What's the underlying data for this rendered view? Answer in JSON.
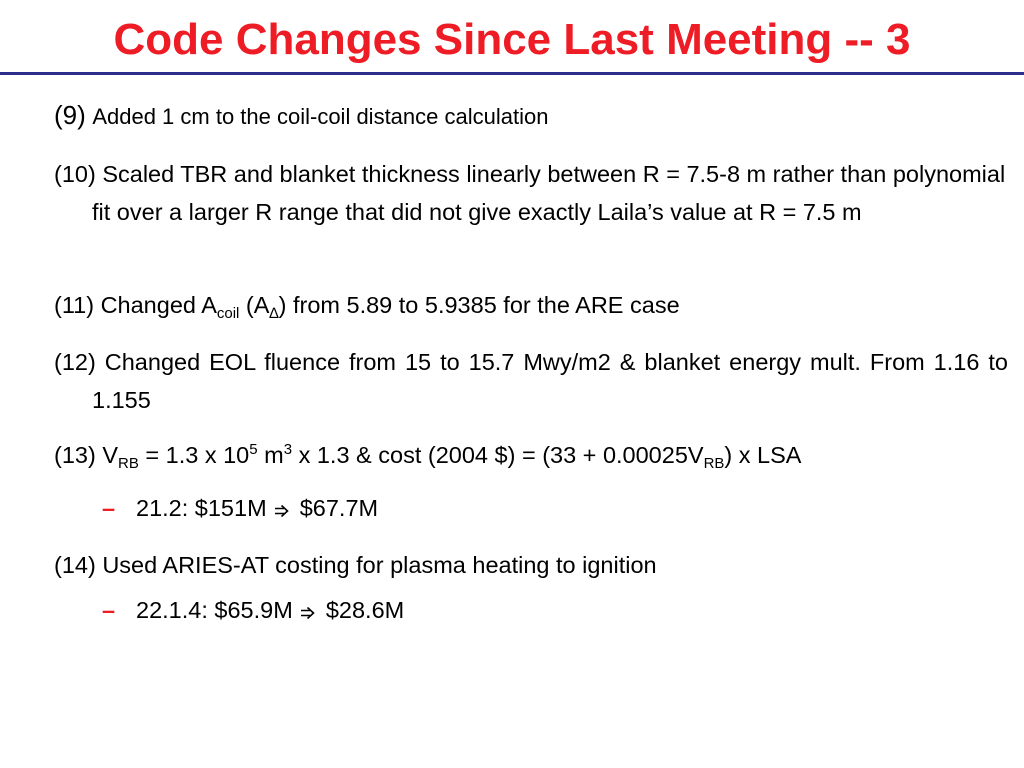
{
  "colors": {
    "title": "#ee1c25",
    "rule": "#2b2e8c",
    "dash": "#ee1c25"
  },
  "slide": {
    "title": "Code Changes Since Last Meeting -- 3"
  },
  "items": {
    "i9": {
      "num": "(9)",
      "text": "Added 1 cm to the coil-coil distance calculation"
    },
    "i10": {
      "text": "(10) Scaled TBR and blanket thickness linearly between R = 7.5-8 m rather than polynomial fit over a larger R range that did not give exactly Laila’s value at R = 7.5 m"
    },
    "i11": {
      "part1": "(11) Changed A",
      "sub1": "coil",
      "part2": " (A",
      "sub2": "∆",
      "part3": ") from 5.89 to 5.9385 for the ARE case"
    },
    "i12": {
      "text": "(12) Changed EOL fluence from 15 to 15.7 Mwy/m2 & blanket energy mult. From 1.16 to 1.155"
    },
    "i13": {
      "part1": "(13) V",
      "sub1": "RB",
      "part2": " = 1.3 x 10",
      "sup1": "5",
      "part3": " m",
      "sup2": "3",
      "part4": " x 1.3 & cost (2004 $) = (33 + 0.00025V",
      "sub2": "RB",
      "part5": ") x LSA",
      "sub": {
        "dash": "–",
        "before": "21.2:  $151M ",
        "arrow_icon": "double-right-arrow",
        "after": " $67.7M"
      }
    },
    "i14": {
      "text": "(14) Used ARIES-AT costing for plasma heating to ignition",
      "sub": {
        "dash": "–",
        "before": "22.1.4:  $65.9M ",
        "arrow_icon": "double-right-arrow",
        "after": " $28.6M"
      }
    }
  }
}
